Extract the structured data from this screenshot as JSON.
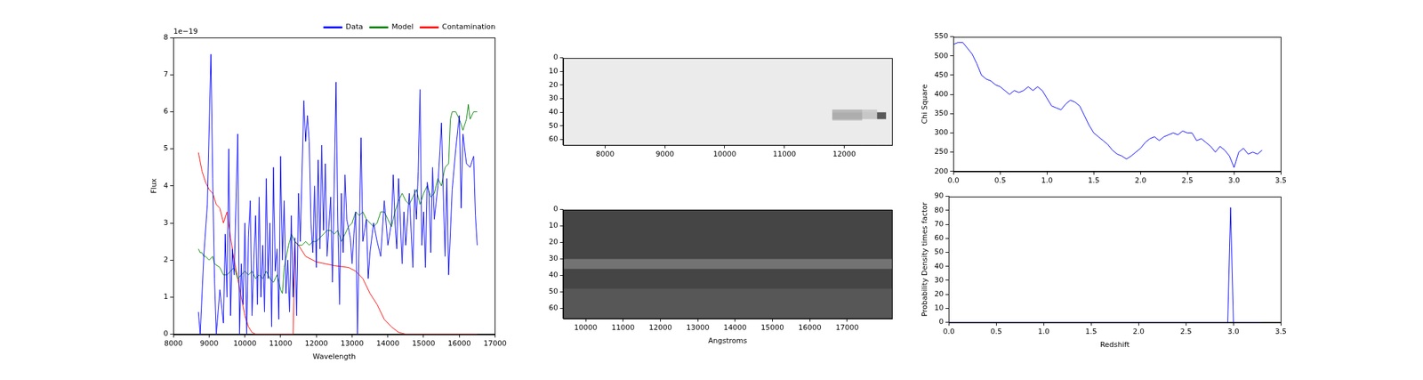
{
  "chart_data": [
    {
      "type": "line",
      "x_label": "Wavelength",
      "y_label": "Flux",
      "annotations": [
        {
          "text": "1e−19"
        }
      ],
      "xlim": [
        8000,
        17000
      ],
      "xticks": [
        8000,
        9000,
        10000,
        11000,
        12000,
        13000,
        14000,
        15000,
        16000,
        17000
      ],
      "ylim": [
        0,
        8
      ],
      "yticks": [
        0,
        1,
        2,
        3,
        4,
        5,
        6,
        7,
        8
      ],
      "grid": false,
      "legend": "upper right",
      "series": [
        {
          "name": "Data",
          "color": "#0000ff",
          "x": [
            8700,
            8750,
            8850,
            8950,
            9050,
            9100,
            9150,
            9200,
            9300,
            9400,
            9450,
            9500,
            9550,
            9600,
            9650,
            9700,
            9800,
            9850,
            9900,
            9950,
            10000,
            10050,
            10100,
            10150,
            10200,
            10250,
            10300,
            10350,
            10400,
            10450,
            10500,
            10550,
            10600,
            10650,
            10700,
            10750,
            10800,
            10850,
            10900,
            10950,
            11000,
            11050,
            11100,
            11150,
            11200,
            11250,
            11300,
            11350,
            11400,
            11450,
            11500,
            11550,
            11650,
            11700,
            11750,
            11800,
            11850,
            11900,
            11950,
            12000,
            12050,
            12100,
            12150,
            12200,
            12250,
            12300,
            12400,
            12450,
            12550,
            12600,
            12650,
            12700,
            12750,
            12800,
            12850,
            12950,
            13000,
            13050,
            13100,
            13150,
            13250,
            13300,
            13400,
            13450,
            13500,
            13600,
            13700,
            13800,
            13900,
            14000,
            14100,
            14150,
            14200,
            14250,
            14300,
            14400,
            14450,
            14500,
            14600,
            14700,
            14750,
            14800,
            14850,
            14900,
            14950,
            15000,
            15050,
            15100,
            15150,
            15200,
            15250,
            15300,
            15400,
            15500,
            15550,
            15600,
            15650,
            15700,
            15800,
            15900,
            16000,
            16050,
            16100,
            16200,
            16300,
            16400,
            16450,
            16500
          ],
          "values": [
            0.6,
            0,
            2.1,
            3.5,
            7.55,
            4.2,
            1.5,
            0,
            1.2,
            0.3,
            2.7,
            1.0,
            5.0,
            0.5,
            2.3,
            1.6,
            5.4,
            0,
            1.9,
            0.8,
            3.0,
            0,
            2.6,
            3.6,
            0.5,
            2.0,
            3.2,
            0.8,
            3.7,
            1.0,
            2.4,
            0.6,
            4.2,
            1.5,
            3.0,
            0.2,
            4.5,
            1.7,
            2.3,
            0.4,
            4.8,
            2.0,
            3.6,
            1.1,
            2.0,
            0.6,
            3.2,
            1.0,
            2.6,
            0.5,
            3.8,
            2.5,
            6.3,
            5.2,
            5.9,
            5.2,
            3.0,
            2.2,
            4.0,
            1.8,
            4.7,
            2.3,
            5.1,
            2.8,
            4.6,
            2.1,
            3.7,
            1.4,
            6.8,
            3.0,
            0.8,
            3.8,
            2.2,
            4.3,
            3.1,
            2.6,
            1.9,
            2.7,
            3.3,
            0,
            5.3,
            2.5,
            3.1,
            1.5,
            2.2,
            3.0,
            2.5,
            2.1,
            3.6,
            2.4,
            3.0,
            4.3,
            3.0,
            2.3,
            4.2,
            1.9,
            3.3,
            2.4,
            3.8,
            1.8,
            3.9,
            3.1,
            4.4,
            6.6,
            2.4,
            3.3,
            1.8,
            4.1,
            3.8,
            2.2,
            4.5,
            3.1,
            4.0,
            5.7,
            3.8,
            2.1,
            4.2,
            1.6,
            3.9,
            5.0,
            5.9,
            3.4,
            5.4,
            4.6,
            4.5,
            4.8,
            3.2,
            2.4
          ]
        },
        {
          "name": "Model",
          "color": "#008000",
          "x": [
            8700,
            8750,
            8800,
            8850,
            8900,
            9000,
            9100,
            9150,
            9300,
            9400,
            9500,
            9600,
            9700,
            9800,
            9900,
            10000,
            10100,
            10200,
            10300,
            10400,
            10500,
            10600,
            10700,
            10800,
            10900,
            11000,
            11050,
            11100,
            11200,
            11300,
            11400,
            11500,
            11600,
            11700,
            11800,
            11900,
            12000,
            12100,
            12200,
            12300,
            12400,
            12500,
            12600,
            12700,
            12800,
            12900,
            13000,
            13100,
            13200,
            13300,
            13400,
            13500,
            13600,
            13700,
            13800,
            13900,
            14000,
            14100,
            14200,
            14300,
            14400,
            14500,
            14600,
            14700,
            14800,
            14900,
            15000,
            15100,
            15200,
            15300,
            15400,
            15500,
            15600,
            15700,
            15750,
            15800,
            15900,
            16000,
            16100,
            16200,
            16250,
            16300,
            16400,
            16500
          ],
          "values": [
            2.3,
            2.2,
            2.2,
            2.1,
            2.1,
            2.0,
            2.1,
            1.9,
            1.8,
            1.6,
            1.6,
            1.7,
            1.8,
            1.5,
            1.6,
            1.7,
            1.6,
            1.7,
            1.5,
            1.6,
            1.5,
            1.7,
            1.5,
            1.4,
            1.6,
            1.2,
            1.1,
            1.8,
            2.3,
            2.7,
            2.5,
            2.4,
            2.4,
            2.5,
            2.4,
            2.5,
            2.5,
            2.6,
            2.7,
            2.8,
            2.8,
            2.7,
            2.8,
            2.5,
            2.7,
            2.9,
            3.0,
            3.3,
            3.2,
            3.3,
            3.1,
            3.0,
            2.9,
            3.0,
            3.3,
            3.3,
            3.1,
            2.9,
            3.3,
            3.6,
            3.8,
            3.6,
            3.5,
            3.7,
            3.9,
            3.5,
            3.8,
            4.0,
            3.7,
            3.8,
            4.2,
            4.0,
            4.5,
            4.6,
            5.8,
            6.0,
            6.0,
            5.8,
            5.5,
            5.8,
            6.2,
            5.8,
            6.0,
            6.0
          ]
        },
        {
          "name": "Contamination",
          "color": "#ff0000",
          "x": [
            8700,
            8800,
            8900,
            9000,
            9100,
            9200,
            9300,
            9400,
            9500,
            9600,
            9700,
            9800,
            9900,
            10000,
            10100,
            10200,
            10300,
            11350,
            11400,
            11500,
            11700,
            12000,
            12500,
            12900,
            13100,
            13300,
            13500,
            13700,
            13900,
            14100,
            14300,
            14500,
            16500
          ],
          "values": [
            4.9,
            4.4,
            4.1,
            3.9,
            3.8,
            3.5,
            3.4,
            3.0,
            3.3,
            2.6,
            2.0,
            1.5,
            1.0,
            0.5,
            0.2,
            0.05,
            0,
            0,
            2.5,
            2.4,
            2.1,
            1.95,
            1.85,
            1.8,
            1.7,
            1.5,
            1.1,
            0.8,
            0.4,
            0.2,
            0.05,
            0,
            0
          ]
        }
      ]
    },
    {
      "type": "heatmap",
      "color": "gray",
      "grid": false,
      "xlim": [
        7300,
        12800
      ],
      "xticks": [
        8000,
        9000,
        10000,
        11000,
        12000
      ],
      "ylim": [
        64,
        0
      ],
      "yticks": [
        0,
        10,
        20,
        30,
        40,
        50,
        60
      ],
      "x_edges": [
        7300,
        11800,
        12300,
        12550,
        12700,
        12800
      ],
      "y_edges": [
        0,
        38,
        40,
        45,
        46,
        64
      ],
      "cells": [
        [
          0.92,
          0.92,
          0.92,
          0.92,
          0.92
        ],
        [
          0.92,
          0.72,
          0.8,
          0.92,
          0.92
        ],
        [
          0.92,
          0.68,
          0.78,
          0.35,
          0.92
        ],
        [
          0.92,
          0.75,
          0.92,
          0.92,
          0.92
        ],
        [
          0.92,
          0.92,
          0.92,
          0.92,
          0.92
        ]
      ]
    },
    {
      "type": "heatmap",
      "color": "gray",
      "grid": false,
      "x_label": "Angstroms",
      "xlim": [
        9400,
        18200
      ],
      "xticks": [
        10000,
        11000,
        12000,
        13000,
        14000,
        15000,
        16000,
        17000
      ],
      "ylim": [
        66,
        0
      ],
      "yticks": [
        0,
        10,
        20,
        30,
        40,
        50,
        60
      ],
      "x_edges": [
        9400,
        18200
      ],
      "y_edges": [
        0,
        30,
        36,
        48,
        66
      ],
      "cells": [
        [
          0.27
        ],
        [
          0.45
        ],
        [
          0.27
        ],
        [
          0.34
        ]
      ]
    },
    {
      "type": "line",
      "y_label": "Chi Square",
      "grid": false,
      "xlim": [
        0,
        3.5
      ],
      "xticks": [
        {
          "value": 0,
          "label": "0.0"
        },
        {
          "value": 0.5,
          "label": "0.5"
        },
        {
          "value": 1,
          "label": "1.0"
        },
        {
          "value": 1.5,
          "label": "1.5"
        },
        {
          "value": 2,
          "label": "2.0"
        },
        {
          "value": 2.5,
          "label": "2.5"
        },
        {
          "value": 3,
          "label": "3.0"
        },
        {
          "value": 3.5,
          "label": "3.5"
        }
      ],
      "ylim": [
        200,
        550
      ],
      "yticks": [
        200,
        250,
        300,
        350,
        400,
        450,
        500,
        550
      ],
      "series": [
        {
          "color": "#0000ff",
          "x": [
            0,
            0.05,
            0.1,
            0.15,
            0.2,
            0.25,
            0.3,
            0.35,
            0.4,
            0.45,
            0.5,
            0.55,
            0.6,
            0.65,
            0.7,
            0.75,
            0.8,
            0.85,
            0.9,
            0.95,
            1.0,
            1.05,
            1.1,
            1.15,
            1.2,
            1.25,
            1.3,
            1.35,
            1.4,
            1.45,
            1.5,
            1.55,
            1.6,
            1.65,
            1.7,
            1.75,
            1.8,
            1.85,
            1.9,
            1.95,
            2.0,
            2.05,
            2.1,
            2.15,
            2.2,
            2.25,
            2.3,
            2.35,
            2.4,
            2.45,
            2.5,
            2.55,
            2.6,
            2.65,
            2.7,
            2.75,
            2.8,
            2.85,
            2.9,
            2.95,
            3.0,
            3.05,
            3.1,
            3.15,
            3.2,
            3.25,
            3.3
          ],
          "values": [
            530,
            535,
            535,
            520,
            505,
            480,
            450,
            440,
            435,
            425,
            420,
            410,
            400,
            410,
            405,
            410,
            420,
            410,
            420,
            410,
            390,
            370,
            365,
            360,
            375,
            385,
            380,
            370,
            345,
            320,
            300,
            290,
            280,
            270,
            255,
            245,
            240,
            232,
            240,
            250,
            260,
            275,
            285,
            290,
            280,
            290,
            295,
            300,
            295,
            305,
            300,
            300,
            280,
            285,
            275,
            265,
            250,
            265,
            255,
            240,
            210,
            250,
            260,
            245,
            250,
            245,
            255
          ]
        }
      ]
    },
    {
      "type": "line",
      "x_label": "Redshift",
      "y_label": "Probability Density times factor",
      "grid": false,
      "xlim": [
        0,
        3.5
      ],
      "xticks": [
        {
          "value": 0,
          "label": "0.0"
        },
        {
          "value": 0.5,
          "label": "0.5"
        },
        {
          "value": 1,
          "label": "1.0"
        },
        {
          "value": 1.5,
          "label": "1.5"
        },
        {
          "value": 2,
          "label": "2.0"
        },
        {
          "value": 2.5,
          "label": "2.5"
        },
        {
          "value": 3,
          "label": "3.0"
        },
        {
          "value": 3.5,
          "label": "3.5"
        }
      ],
      "ylim": [
        0,
        90
      ],
      "yticks": [
        0,
        10,
        20,
        30,
        40,
        50,
        60,
        70,
        80,
        90
      ],
      "series": [
        {
          "color": "#0000ff",
          "x": [
            0,
            2.94,
            2.97,
            3.0,
            3.3
          ],
          "values": [
            0,
            0,
            82,
            0,
            0
          ]
        }
      ]
    }
  ]
}
